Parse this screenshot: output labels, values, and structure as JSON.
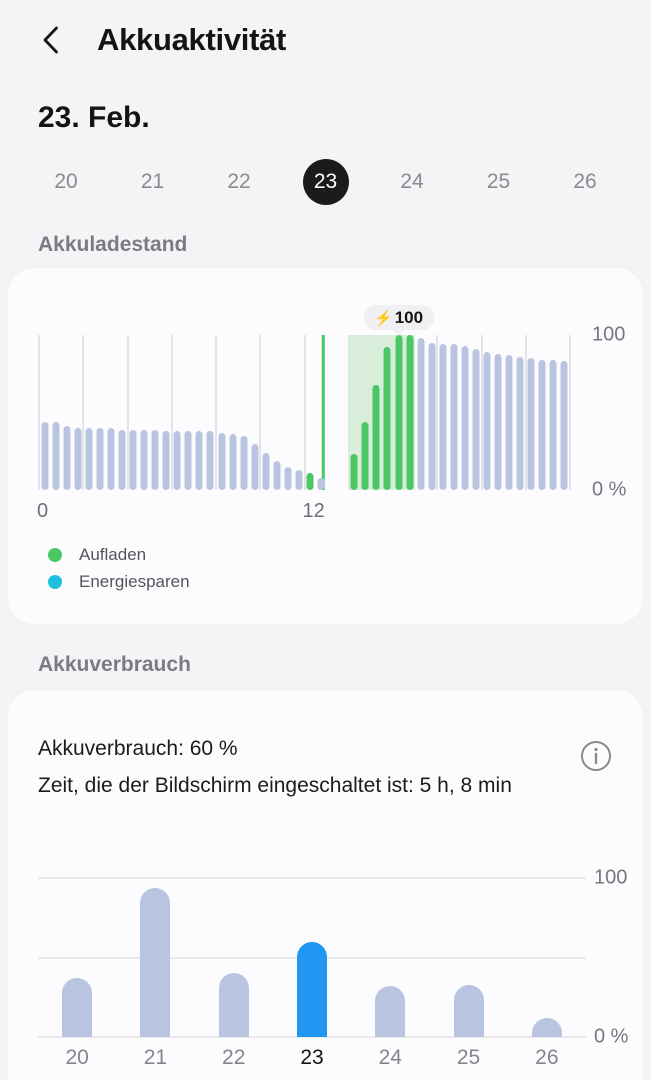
{
  "header": {
    "title": "Akkuaktivität"
  },
  "date_heading": "23. Feb.",
  "day_selector": {
    "days": [
      "20",
      "21",
      "22",
      "23",
      "24",
      "25",
      "26"
    ],
    "selected": "23"
  },
  "sections": {
    "battery_level": "Akkuladestand",
    "battery_usage": "Akkuverbrauch"
  },
  "battery_level_card": {
    "tooltip": {
      "icon": "⚡",
      "value": "100"
    },
    "legend": [
      {
        "label": "Aufladen",
        "color": "#4bc766"
      },
      {
        "label": "Energiesparen",
        "color": "#1fc0dd"
      }
    ]
  },
  "usage_card": {
    "usage_line": "Akkuverbrauch: 60 %",
    "screen_time_line": "Zeit, die der Bildschirm eingeschaltet ist: 5 h, 8 min"
  },
  "colors": {
    "charge_green": "#4bc766",
    "charge_shade_green": "#d9eeda",
    "level_bar_blue_gray": "#b9c5e0",
    "usage_highlight_blue": "#2196f3",
    "energy_save_cyan": "#1fc0dd",
    "selected_day_bg": "#1b1b1b"
  },
  "chart_data": [
    {
      "type": "bar",
      "title": "Akkuladestand",
      "x_unit": "half-hour bins over 24 h day",
      "ylim": [
        0,
        100
      ],
      "gridline_hours": [
        0,
        2,
        4,
        6,
        8,
        10,
        12,
        14,
        16,
        18,
        20,
        22,
        24
      ],
      "x_ticks": [
        {
          "label": "0",
          "hour": 0
        },
        {
          "label": "12",
          "hour": 12
        }
      ],
      "y_ticks": [
        {
          "label": "100",
          "value": 100
        },
        {
          "label": "0 %",
          "value": 0
        }
      ],
      "values": [
        44,
        44,
        41,
        40,
        40,
        40,
        40,
        39,
        39,
        39,
        39,
        38,
        38,
        38,
        38,
        38,
        37,
        36,
        35,
        30,
        24,
        19,
        15,
        13,
        11,
        8,
        0,
        0,
        23,
        44,
        68,
        92,
        100,
        100,
        98,
        95,
        94,
        94,
        93,
        91,
        89,
        88,
        87,
        86,
        85,
        84,
        84,
        83
      ],
      "charging_bins": [
        24,
        28,
        29,
        30,
        31,
        32,
        33
      ],
      "charging_region_bins": [
        28,
        33
      ],
      "charge_marker_bin": 25.7,
      "tooltip": {
        "text": "⚡100",
        "bin": 32.5,
        "value": 100
      },
      "legend": [
        "Aufladen",
        "Energiesparen"
      ]
    },
    {
      "type": "bar",
      "title": "Akkuverbrauch",
      "categories": [
        "20",
        "21",
        "22",
        "23",
        "24",
        "25",
        "26"
      ],
      "values": [
        37,
        94,
        40,
        60,
        32,
        33,
        12
      ],
      "highlighted_category": "23",
      "highlighted_value": 60,
      "bar_color": "#b9c5e0",
      "highlight_color": "#2196f3",
      "ylim": [
        0,
        100
      ],
      "gridlines": [
        0,
        50,
        100
      ],
      "y_ticks": [
        {
          "label": "100",
          "value": 100
        },
        {
          "label": "0 %",
          "value": 0
        }
      ]
    }
  ]
}
